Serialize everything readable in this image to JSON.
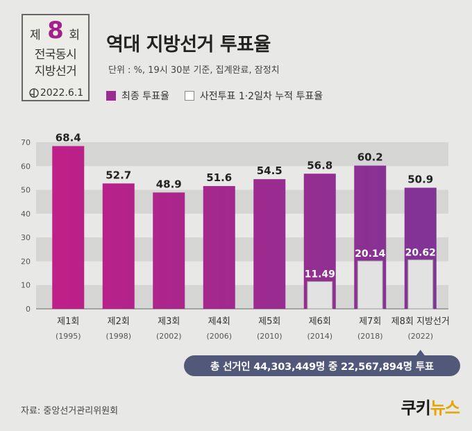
{
  "logo": {
    "line1_prefix": "제",
    "number": "8",
    "line1_suffix": "회",
    "line2": "전국동시",
    "line3": "지방선거",
    "date": "2022.6.1",
    "icon": "ballot-icon"
  },
  "title": "역대 지방선거 투표율",
  "unit_note": "단위 : %, 19시 30분 기준, 집계완료, 잠정치",
  "legend": {
    "final": "최종 투표율",
    "early": "사전투표 1·2일차 누적 투표율"
  },
  "colors": {
    "background": "#e8e8e6",
    "band": "#d5d5d3",
    "final_start": "#c21e87",
    "final_end": "#7d3596",
    "early_fill": "#e2e2e2",
    "pill": "#51587a",
    "brand_accent": "#e6a400"
  },
  "chart_data": {
    "type": "bar",
    "categories": [
      {
        "name": "제1회",
        "year": "(1995)"
      },
      {
        "name": "제2회",
        "year": "(1998)"
      },
      {
        "name": "제3회",
        "year": "(2002)"
      },
      {
        "name": "제4회",
        "year": "(2006)"
      },
      {
        "name": "제5회",
        "year": "(2010)"
      },
      {
        "name": "제6회",
        "year": "(2014)"
      },
      {
        "name": "제7회",
        "year": "(2018)"
      },
      {
        "name": "제8회 지방선거",
        "year": "(2022)"
      }
    ],
    "series": [
      {
        "name": "최종 투표율",
        "values": [
          68.4,
          52.7,
          48.9,
          51.6,
          54.5,
          56.8,
          60.2,
          50.9
        ],
        "labels": [
          "68.4",
          "52.7",
          "48.9",
          "51.6",
          "54.5",
          "56.8",
          "60.2",
          "50.9"
        ]
      },
      {
        "name": "사전투표 1·2일차 누적 투표율",
        "values": [
          null,
          null,
          null,
          null,
          null,
          11.49,
          20.14,
          20.62
        ],
        "labels": [
          "",
          "",
          "",
          "",
          "",
          "11.49",
          "20.14",
          "20.62"
        ]
      }
    ],
    "ylim": [
      0,
      70
    ],
    "yticks": [
      0,
      10,
      20,
      30,
      40,
      50,
      60,
      70
    ]
  },
  "total_note": "총 선거인 44,303,449명 중 22,567,894명 투표",
  "source": "자료: 중앙선거관리위원회",
  "brand": {
    "part1": "쿠키",
    "part2": "뉴스"
  }
}
